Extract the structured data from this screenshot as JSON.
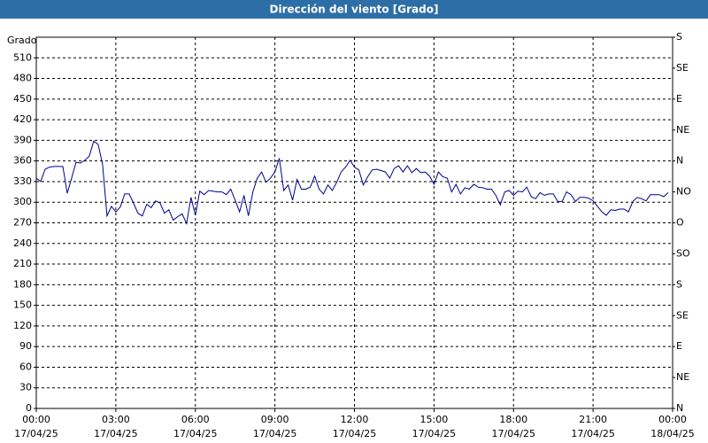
{
  "chart_data": {
    "type": "line",
    "title": "Dirección del viento [Grado]",
    "y_label": "Grado",
    "x": [
      "17/04/25 00:00",
      "17/04/25 00:10",
      "17/04/25 00:20",
      "17/04/25 00:30",
      "17/04/25 00:40",
      "17/04/25 00:50",
      "17/04/25 01:00",
      "17/04/25 01:10",
      "17/04/25 01:20",
      "17/04/25 01:30",
      "17/04/25 01:40",
      "17/04/25 01:50",
      "17/04/25 02:00",
      "17/04/25 02:10",
      "17/04/25 02:20",
      "17/04/25 02:30",
      "17/04/25 02:40",
      "17/04/25 02:50",
      "17/04/25 03:00",
      "17/04/25 03:10",
      "17/04/25 03:20",
      "17/04/25 03:30",
      "17/04/25 03:40",
      "17/04/25 03:50",
      "17/04/25 04:00",
      "17/04/25 04:10",
      "17/04/25 04:20",
      "17/04/25 04:30",
      "17/04/25 04:40",
      "17/04/25 04:50",
      "17/04/25 05:00",
      "17/04/25 05:10",
      "17/04/25 05:20",
      "17/04/25 05:30",
      "17/04/25 05:40",
      "17/04/25 05:50",
      "17/04/25 06:00",
      "17/04/25 06:10",
      "17/04/25 06:20",
      "17/04/25 06:30",
      "17/04/25 06:40",
      "17/04/25 06:50",
      "17/04/25 07:00",
      "17/04/25 07:10",
      "17/04/25 07:20",
      "17/04/25 07:30",
      "17/04/25 07:40",
      "17/04/25 07:50",
      "17/04/25 08:00",
      "17/04/25 08:10",
      "17/04/25 08:20",
      "17/04/25 08:30",
      "17/04/25 08:40",
      "17/04/25 08:50",
      "17/04/25 09:00",
      "17/04/25 09:10",
      "17/04/25 09:20",
      "17/04/25 09:30",
      "17/04/25 09:40",
      "17/04/25 09:50",
      "17/04/25 10:00",
      "17/04/25 10:10",
      "17/04/25 10:20",
      "17/04/25 10:30",
      "17/04/25 10:40",
      "17/04/25 10:50",
      "17/04/25 11:00",
      "17/04/25 11:10",
      "17/04/25 11:20",
      "17/04/25 11:30",
      "17/04/25 11:40",
      "17/04/25 11:50",
      "17/04/25 12:00",
      "17/04/25 12:10",
      "17/04/25 12:20",
      "17/04/25 12:30",
      "17/04/25 12:40",
      "17/04/25 12:50",
      "17/04/25 13:00",
      "17/04/25 13:10",
      "17/04/25 13:20",
      "17/04/25 13:30",
      "17/04/25 13:40",
      "17/04/25 13:50",
      "17/04/25 14:00",
      "17/04/25 14:10",
      "17/04/25 14:20",
      "17/04/25 14:30",
      "17/04/25 14:40",
      "17/04/25 14:50",
      "17/04/25 15:00",
      "17/04/25 15:10",
      "17/04/25 15:20",
      "17/04/25 15:30",
      "17/04/25 15:40",
      "17/04/25 15:50",
      "17/04/25 16:00",
      "17/04/25 16:10",
      "17/04/25 16:20",
      "17/04/25 16:30",
      "17/04/25 16:40",
      "17/04/25 16:50",
      "17/04/25 17:00",
      "17/04/25 17:10",
      "17/04/25 17:20",
      "17/04/25 17:30",
      "17/04/25 17:40",
      "17/04/25 17:50",
      "17/04/25 18:00",
      "17/04/25 18:10",
      "17/04/25 18:20",
      "17/04/25 18:30",
      "17/04/25 18:40",
      "17/04/25 18:50",
      "17/04/25 19:00",
      "17/04/25 19:10",
      "17/04/25 19:20",
      "17/04/25 19:30",
      "17/04/25 19:40",
      "17/04/25 19:50",
      "17/04/25 20:00",
      "17/04/25 20:10",
      "17/04/25 20:20",
      "17/04/25 20:30",
      "17/04/25 20:40",
      "17/04/25 20:50",
      "17/04/25 21:00",
      "17/04/25 21:10",
      "17/04/25 21:20",
      "17/04/25 21:30",
      "17/04/25 21:40",
      "17/04/25 21:50",
      "17/04/25 22:00",
      "17/04/25 22:10",
      "17/04/25 22:20",
      "17/04/25 22:30",
      "17/04/25 22:40",
      "17/04/25 22:50",
      "17/04/25 23:00",
      "17/04/25 23:10",
      "17/04/25 23:20",
      "17/04/25 23:30",
      "17/04/25 23:40",
      "17/04/25 23:50"
    ],
    "series": [
      {
        "color": "#00008b",
        "values": [
          335,
          330,
          348,
          351,
          352,
          352,
          352,
          313,
          335,
          358,
          357,
          361,
          367,
          389,
          384,
          355,
          280,
          294,
          286,
          293,
          312,
          312,
          299,
          284,
          280,
          297,
          292,
          302,
          299,
          284,
          289,
          274,
          279,
          283,
          269,
          307,
          281,
          316,
          311,
          317,
          316,
          315,
          315,
          311,
          319,
          303,
          286,
          310,
          280,
          315,
          335,
          344,
          329,
          335,
          344,
          364,
          317,
          325,
          303,
          333,
          319,
          319,
          322,
          338,
          319,
          312,
          325,
          317,
          329,
          344,
          351,
          361,
          351,
          347,
          325,
          337,
          347,
          348,
          346,
          344,
          335,
          349,
          353,
          344,
          353,
          343,
          349,
          343,
          344,
          338,
          326,
          344,
          337,
          335,
          315,
          326,
          312,
          321,
          319,
          326,
          322,
          321,
          319,
          319,
          310,
          296,
          315,
          317,
          310,
          316,
          315,
          322,
          308,
          305,
          314,
          310,
          312,
          312,
          301,
          301,
          315,
          311,
          301,
          307,
          307,
          306,
          302,
          294,
          286,
          281,
          289,
          288,
          290,
          290,
          286,
          301,
          307,
          305,
          302,
          311,
          311,
          311,
          308,
          314
        ]
      }
    ],
    "xlim": [
      "17/04/25 00:00",
      "18/04/25 00:00"
    ],
    "xticks": [
      {
        "value": "17/04/25 00:00",
        "label": [
          "00:00",
          "17/04/25"
        ]
      },
      {
        "value": "17/04/25 03:00",
        "label": [
          "03:00",
          "17/04/25"
        ]
      },
      {
        "value": "17/04/25 06:00",
        "label": [
          "06:00",
          "17/04/25"
        ]
      },
      {
        "value": "17/04/25 09:00",
        "label": [
          "09:00",
          "17/04/25"
        ]
      },
      {
        "value": "17/04/25 12:00",
        "label": [
          "12:00",
          "17/04/25"
        ]
      },
      {
        "value": "17/04/25 15:00",
        "label": [
          "15:00",
          "17/04/25"
        ]
      },
      {
        "value": "17/04/25 18:00",
        "label": [
          "18:00",
          "17/04/25"
        ]
      },
      {
        "value": "17/04/25 21:00",
        "label": [
          "21:00",
          "17/04/25"
        ]
      },
      {
        "value": "18/04/25 00:00",
        "label": [
          "00:00",
          "18/04/25"
        ]
      }
    ],
    "ylim": [
      0,
      540
    ],
    "yticks": [
      0,
      30,
      60,
      90,
      120,
      150,
      180,
      210,
      240,
      270,
      300,
      330,
      360,
      390,
      420,
      450,
      480,
      510
    ],
    "y2lim": [
      0,
      540
    ],
    "y2ticks": [
      {
        "value": 0,
        "label": "N"
      },
      {
        "value": 45,
        "label": "NE"
      },
      {
        "value": 90,
        "label": "E"
      },
      {
        "value": 135,
        "label": "SE"
      },
      {
        "value": 180,
        "label": "S"
      },
      {
        "value": 225,
        "label": "SO"
      },
      {
        "value": 270,
        "label": "O"
      },
      {
        "value": 315,
        "label": "NO"
      },
      {
        "value": 360,
        "label": "N"
      },
      {
        "value": 405,
        "label": "NE"
      },
      {
        "value": 450,
        "label": "E"
      },
      {
        "value": 495,
        "label": "SE"
      },
      {
        "value": 540,
        "label": "S"
      }
    ],
    "grid": true
  }
}
